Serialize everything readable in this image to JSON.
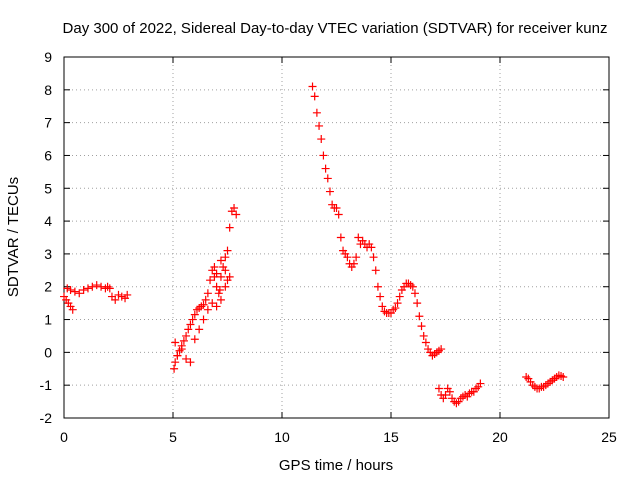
{
  "chart_data": {
    "type": "scatter",
    "title": "Day 300 of 2022, Sidereal Day-to-day VTEC variation (SDTVAR) for receiver kunz",
    "xlabel": "GPS time / hours",
    "ylabel": "SDTVAR / TECUs",
    "xlim": [
      0,
      25
    ],
    "ylim": [
      -2,
      9
    ],
    "x_ticks": [
      "0",
      "5",
      "10",
      "15",
      "20",
      "25"
    ],
    "y_ticks": [
      "-2",
      "-1",
      "0",
      "1",
      "2",
      "3",
      "4",
      "5",
      "6",
      "7",
      "8",
      "9"
    ],
    "grid": true,
    "legend": "none",
    "marker": "plus",
    "color": "#ff0000",
    "series": [
      {
        "x": [
          0.0,
          0.1,
          0.2,
          0.3,
          0.4,
          0.15,
          0.3,
          0.5,
          0.7,
          0.9,
          1.1,
          1.3,
          1.5,
          1.7,
          1.9,
          2.0,
          2.1,
          2.2,
          2.35,
          2.5,
          2.65,
          2.8,
          2.9
        ],
        "y": [
          1.7,
          1.6,
          1.5,
          1.4,
          1.3,
          1.95,
          1.9,
          1.85,
          1.8,
          1.9,
          1.95,
          2.0,
          2.05,
          2.0,
          1.95,
          2.0,
          1.95,
          1.7,
          1.6,
          1.75,
          1.7,
          1.65,
          1.75
        ]
      },
      {
        "x": [
          5.05,
          5.1,
          5.2,
          5.3,
          5.4,
          5.5,
          5.6,
          5.7,
          5.8,
          5.9,
          6.0,
          6.1,
          6.2,
          6.3,
          6.4,
          6.5,
          6.6,
          6.7,
          6.8,
          6.9,
          7.0,
          7.1,
          7.15,
          7.2,
          7.3,
          7.4,
          7.5,
          7.6,
          7.7,
          7.8,
          7.9,
          5.1,
          5.2,
          5.4,
          5.6,
          5.8,
          6.0,
          6.2,
          6.4,
          6.6,
          6.8,
          7.0,
          7.2,
          7.4,
          7.6,
          6.9,
          7.0,
          7.2,
          7.4,
          7.5
        ],
        "y": [
          -0.5,
          -0.3,
          -0.1,
          0.05,
          0.2,
          0.35,
          0.5,
          0.7,
          0.85,
          1.0,
          1.15,
          1.3,
          1.35,
          1.4,
          1.45,
          1.6,
          1.8,
          2.2,
          2.5,
          2.3,
          2.0,
          1.8,
          1.9,
          2.3,
          2.6,
          2.9,
          3.1,
          3.8,
          4.3,
          4.4,
          4.2,
          0.3,
          -0.1,
          0.1,
          -0.2,
          -0.3,
          0.4,
          0.7,
          1.0,
          1.3,
          1.5,
          1.4,
          1.6,
          2.0,
          2.3,
          2.6,
          2.4,
          2.8,
          2.5,
          2.2
        ]
      },
      {
        "x": [
          11.4,
          11.5,
          11.6,
          11.7,
          11.8,
          11.9,
          12.0,
          12.1,
          12.2,
          12.3,
          12.4,
          12.5,
          12.6,
          12.7,
          12.8,
          12.9,
          13.0,
          13.1,
          13.2,
          13.3,
          13.4,
          13.5,
          13.6,
          13.7,
          13.8,
          13.9,
          14.0,
          14.1,
          14.2,
          14.3,
          14.4,
          14.5,
          14.6,
          14.7,
          14.8,
          14.9,
          15.0,
          15.1,
          15.2,
          15.3,
          15.4,
          15.5,
          15.6,
          15.7,
          15.8,
          15.9,
          16.0,
          16.1,
          16.2,
          16.3,
          16.4,
          16.5,
          16.6,
          16.7,
          16.8,
          16.9,
          17.0,
          17.1,
          17.2,
          17.3
        ],
        "y": [
          8.1,
          7.8,
          7.3,
          6.9,
          6.5,
          6.0,
          5.6,
          5.3,
          4.9,
          4.5,
          4.4,
          4.4,
          4.2,
          3.5,
          3.1,
          3.0,
          2.9,
          2.7,
          2.6,
          2.7,
          2.9,
          3.5,
          3.3,
          3.4,
          3.3,
          3.2,
          3.3,
          3.2,
          2.9,
          2.5,
          2.0,
          1.7,
          1.4,
          1.25,
          1.2,
          1.2,
          1.2,
          1.3,
          1.35,
          1.5,
          1.7,
          1.9,
          2.0,
          2.1,
          2.1,
          2.05,
          2.0,
          1.8,
          1.5,
          1.1,
          0.8,
          0.5,
          0.3,
          0.1,
          0.0,
          -0.1,
          -0.05,
          0.0,
          0.05,
          0.1
        ]
      },
      {
        "x": [
          17.2,
          17.3,
          17.4,
          17.5,
          17.6,
          17.7,
          17.8,
          17.9,
          18.0,
          18.1,
          18.2,
          18.3,
          18.4,
          18.5,
          18.6,
          18.7,
          18.8,
          18.9,
          19.0,
          19.1
        ],
        "y": [
          -1.1,
          -1.3,
          -1.4,
          -1.3,
          -1.1,
          -1.2,
          -1.4,
          -1.5,
          -1.55,
          -1.5,
          -1.4,
          -1.35,
          -1.3,
          -1.35,
          -1.25,
          -1.2,
          -1.2,
          -1.1,
          -1.05,
          -0.95
        ]
      },
      {
        "x": [
          21.2,
          21.3,
          21.4,
          21.5,
          21.6,
          21.7,
          21.8,
          21.9,
          22.0,
          22.1,
          22.2,
          22.3,
          22.4,
          22.5,
          22.6,
          22.7,
          22.8,
          22.9
        ],
        "y": [
          -0.75,
          -0.8,
          -0.9,
          -1.0,
          -1.05,
          -1.1,
          -1.1,
          -1.05,
          -1.05,
          -1.0,
          -0.95,
          -0.9,
          -0.85,
          -0.8,
          -0.75,
          -0.7,
          -0.72,
          -0.75
        ]
      }
    ]
  }
}
